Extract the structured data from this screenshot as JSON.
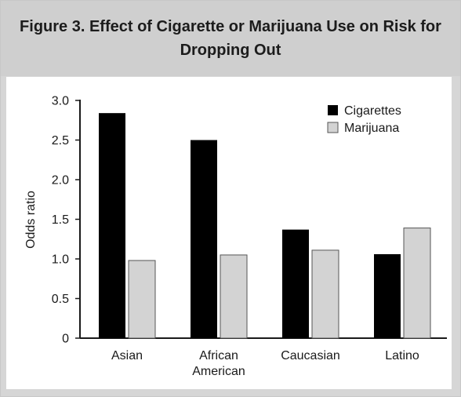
{
  "chart_data": {
    "type": "bar",
    "title": "Figure 3. Effect of Cigarette or Marijuana Use on Risk for Dropping Out",
    "xlabel": "",
    "ylabel": "Odds ratio",
    "categories": [
      [
        "Asian"
      ],
      [
        "African",
        "American"
      ],
      [
        "Caucasian"
      ],
      [
        "Latino"
      ]
    ],
    "series": [
      {
        "name": "Cigarettes",
        "color": "#000000",
        "values": [
          2.84,
          2.5,
          1.37,
          1.06
        ]
      },
      {
        "name": "Marijuana",
        "color": "#d3d3d3",
        "values": [
          0.98,
          1.05,
          1.11,
          1.39
        ]
      }
    ],
    "ylim": [
      0,
      3.0
    ],
    "yticks": [
      0,
      0.5,
      1.0,
      1.5,
      2.0,
      2.5,
      3.0
    ],
    "ytick_labels": [
      "0",
      "0.5",
      "1.0",
      "1.5",
      "2.0",
      "2.5",
      "3.0"
    ],
    "grid": false,
    "legend_position": "top-right"
  }
}
